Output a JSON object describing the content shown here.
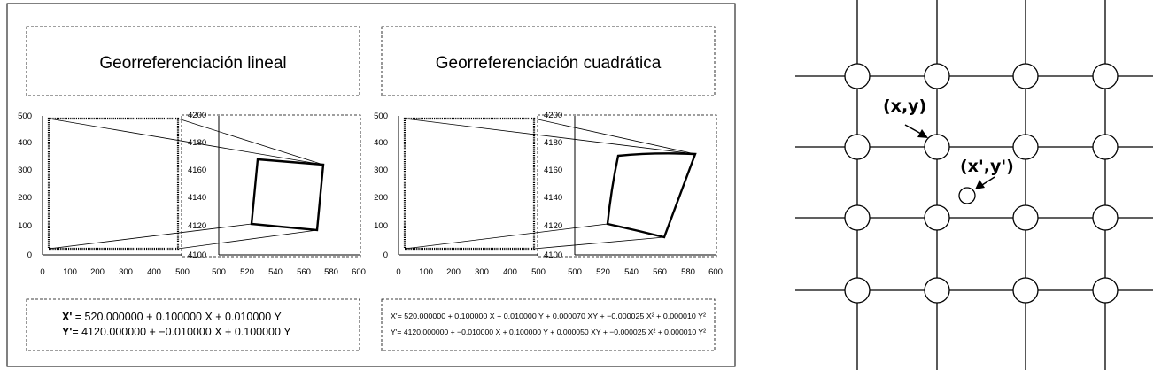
{
  "left_panel": {
    "linear": {
      "title": "Georreferenciación lineal",
      "source_y_ticks": [
        "500",
        "400",
        "300",
        "200",
        "100",
        "0"
      ],
      "source_x_ticks": [
        "0",
        "100",
        "200",
        "300",
        "400",
        "500"
      ],
      "target_y_ticks": [
        "4200",
        "4180",
        "4160",
        "4140",
        "4120",
        "4100"
      ],
      "target_x_ticks": [
        "500",
        "520",
        "540",
        "560",
        "580",
        "600"
      ],
      "equation": {
        "line1": {
          "lhs": "X'",
          "text": " = 520.000000 + 0.100000 X + 0.010000 Y"
        },
        "line2": {
          "lhs": "Y'",
          "text": "= 4120.000000 + −0.010000 X + 0.100000 Y"
        }
      }
    },
    "quadratic": {
      "title": "Georreferenciación cuadrática",
      "source_y_ticks": [
        "500",
        "400",
        "300",
        "200",
        "100",
        "0"
      ],
      "source_x_ticks": [
        "0",
        "100",
        "200",
        "300",
        "400",
        "500"
      ],
      "target_y_ticks": [
        "4200",
        "4180",
        "4160",
        "4140",
        "4120",
        "4100"
      ],
      "target_x_ticks": [
        "500",
        "520",
        "540",
        "560",
        "580",
        "600"
      ],
      "equation": {
        "line1": "X'= 520.000000 + 0.100000 X + 0.010000 Y + 0.000070 XY + −0.000025 X² + 0.000010 Y²",
        "line2": "Y'= 4120.000000 + −0.010000 X + 0.100000 Y + 0.000050 XY + −0.000025 X² + 0.000010 Y²"
      }
    }
  },
  "right_panel": {
    "label_xy": "(x,y)",
    "label_xy_prime": "(x',y')"
  }
}
